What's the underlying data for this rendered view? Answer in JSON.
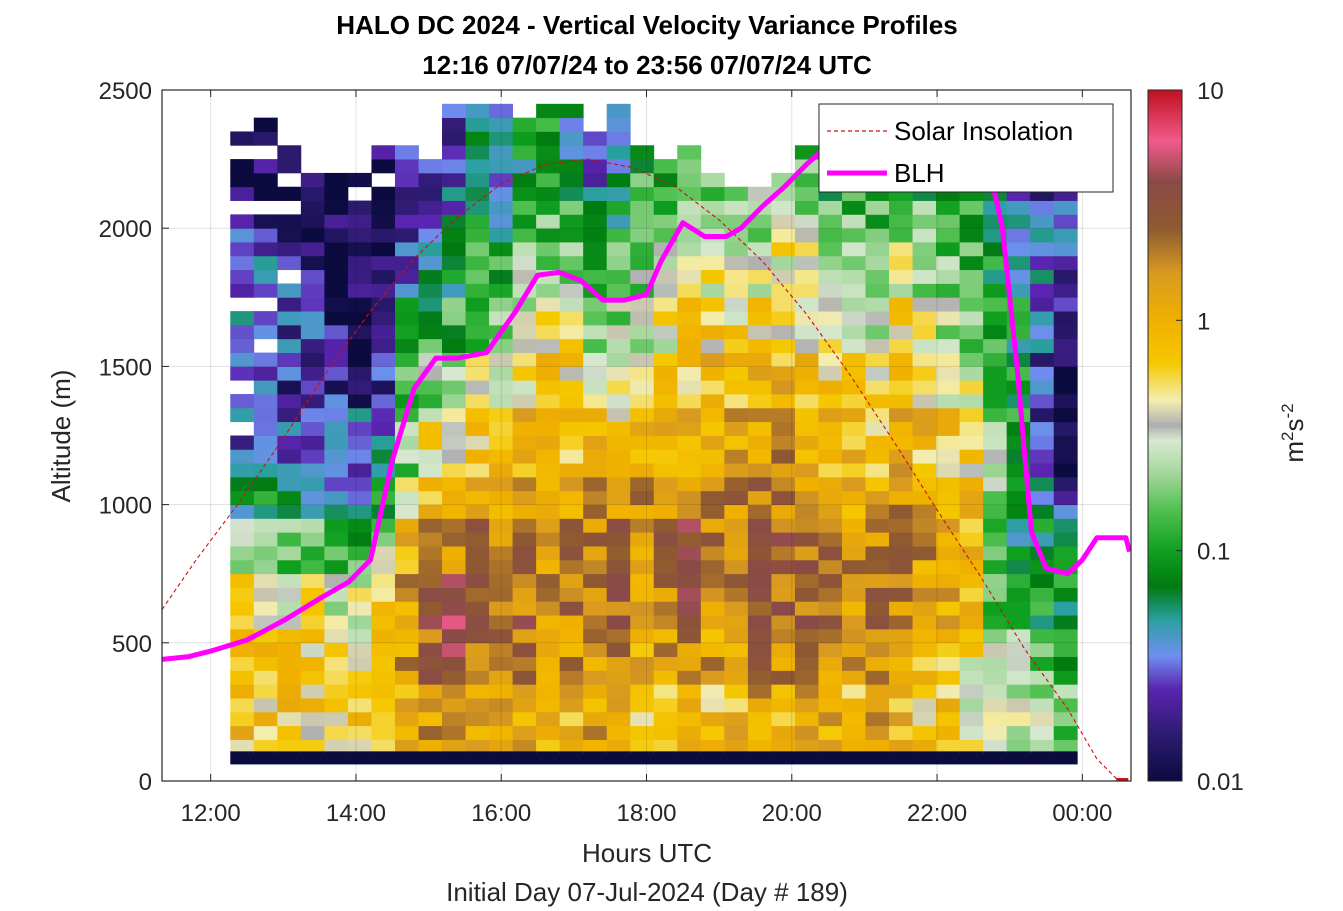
{
  "chart_data": {
    "type": "heatmap",
    "title": "HALO DC 2024 - Vertical Velocity Variance Profiles",
    "subtitle": "12:16 07/07/24 to 23:56 07/07/24  UTC",
    "xlabel": "Hours UTC",
    "xlabel2": "Initial Day 07-Jul-2024 (Day # 189)",
    "ylabel": "Altitude (m)",
    "x_unit": "hours UTC",
    "xlim": [
      11.33,
      24.67
    ],
    "ylim": [
      0,
      2500
    ],
    "x_ticks": [
      {
        "value": 12,
        "label": "12:00"
      },
      {
        "value": 14,
        "label": "14:00"
      },
      {
        "value": 16,
        "label": "16:00"
      },
      {
        "value": 18,
        "label": "18:00"
      },
      {
        "value": 20,
        "label": "20:00"
      },
      {
        "value": 22,
        "label": "22:00"
      },
      {
        "value": 24,
        "label": "00:00"
      }
    ],
    "y_ticks": [
      {
        "value": 0,
        "label": "0"
      },
      {
        "value": 500,
        "label": "500"
      },
      {
        "value": 1000,
        "label": "1000"
      },
      {
        "value": 1500,
        "label": "1500"
      },
      {
        "value": 2000,
        "label": "2000"
      },
      {
        "value": 2500,
        "label": "2500"
      }
    ],
    "grid": true,
    "legend_position": "top-right",
    "colorbar": {
      "label_base": "m",
      "label_sup1": "2",
      "label_mid": "s",
      "label_sup2": "-2",
      "scale": "log",
      "range": [
        0.01,
        10
      ],
      "ticks": [
        {
          "value": 0.01,
          "label": "0.01"
        },
        {
          "value": 0.1,
          "label": "0.1"
        },
        {
          "value": 1,
          "label": "1"
        },
        {
          "value": 10,
          "label": "10"
        }
      ],
      "stops": [
        {
          "value": 0.01,
          "color": "#0b0b40"
        },
        {
          "value": 0.016,
          "color": "#2e1b72"
        },
        {
          "value": 0.025,
          "color": "#5a24b0"
        },
        {
          "value": 0.035,
          "color": "#6f8ff0"
        },
        {
          "value": 0.05,
          "color": "#2aa0a0"
        },
        {
          "value": 0.07,
          "color": "#007a10"
        },
        {
          "value": 0.1,
          "color": "#10a020"
        },
        {
          "value": 0.15,
          "color": "#50c050"
        },
        {
          "value": 0.22,
          "color": "#a8d8a0"
        },
        {
          "value": 0.3,
          "color": "#d8e8d0"
        },
        {
          "value": 0.35,
          "color": "#b0b0b0"
        },
        {
          "value": 0.45,
          "color": "#f4eeb0"
        },
        {
          "value": 0.65,
          "color": "#f5c800"
        },
        {
          "value": 1,
          "color": "#f0b000"
        },
        {
          "value": 1.6,
          "color": "#d89a20"
        },
        {
          "value": 2.5,
          "color": "#8f5a30"
        },
        {
          "value": 4,
          "color": "#8a4a48"
        },
        {
          "value": 6,
          "color": "#f25a8a"
        },
        {
          "value": 10,
          "color": "#c01020"
        }
      ]
    },
    "series": [
      {
        "name": "Solar Insolation",
        "kind": "line",
        "color": "#cc1111",
        "style": "dashed",
        "x": [
          11.33,
          11.8,
          12.4,
          13.0,
          13.6,
          14.2,
          14.8,
          15.4,
          16.0,
          16.6,
          17.2,
          17.8,
          18.4,
          19.0,
          19.6,
          20.2,
          20.8,
          21.4,
          22.0,
          22.6,
          23.2,
          23.8,
          24.2,
          24.5
        ],
        "y": [
          620,
          800,
          1010,
          1240,
          1480,
          1700,
          1890,
          2040,
          2160,
          2230,
          2250,
          2220,
          2150,
          2030,
          1880,
          1690,
          1470,
          1230,
          980,
          740,
          480,
          260,
          80,
          0
        ]
      },
      {
        "name": "BLH",
        "kind": "line",
        "color": "#ff00ff",
        "style": "solid",
        "x": [
          11.33,
          11.7,
          12.0,
          12.5,
          13.0,
          13.5,
          13.9,
          14.2,
          14.5,
          14.8,
          15.1,
          15.4,
          15.8,
          16.2,
          16.5,
          16.8,
          17.1,
          17.4,
          17.7,
          18.0,
          18.2,
          18.5,
          18.8,
          19.1,
          19.3,
          19.6,
          19.9,
          20.2,
          20.5,
          22.6,
          22.8,
          22.9,
          23.1,
          23.3,
          23.5,
          23.8,
          24.0,
          24.2,
          24.6,
          24.65
        ],
        "y": [
          440,
          450,
          470,
          510,
          580,
          660,
          720,
          800,
          1160,
          1420,
          1530,
          1530,
          1550,
          1700,
          1830,
          1840,
          1810,
          1740,
          1740,
          1760,
          1880,
          2020,
          1970,
          1970,
          2000,
          2080,
          2150,
          2230,
          2300,
          2250,
          2120,
          2000,
          1500,
          900,
          770,
          750,
          800,
          880,
          880,
          830
        ]
      }
    ],
    "heatmap": {
      "x_start": 12.27,
      "x_end": 23.93,
      "n_cols": 36,
      "y_start": 100,
      "y_end": 2500,
      "n_rows": 48,
      "cell_height_m": 50,
      "column_bottom_gate_value": 0.01,
      "value_scale": "log10 of m2s-2",
      "columns": [
        {
          "hour": 12.43,
          "tops": [
            2360,
            2250,
            2060,
            1700,
            1560,
            1400,
            1260
          ],
          "log10": [
            -2.0,
            -1.75,
            -1.55,
            -1.35,
            -1.55,
            -1.7,
            -1.4,
            -0.9,
            -0.35,
            -0.2,
            -0.1,
            -0.1
          ]
        },
        {
          "hour": 12.76,
          "tops": [
            2440,
            2250,
            2050,
            1700,
            1560
          ],
          "log10": [
            -2.0,
            -1.8,
            -1.6,
            -1.4,
            -1.55,
            -1.65,
            -1.35,
            -0.9,
            -0.4,
            -0.2,
            -0.2,
            -0.15
          ]
        },
        {
          "hour": 13.08,
          "tops": [
            2320,
            2130,
            2030,
            1800
          ],
          "log10": [
            -2.0,
            -1.85,
            -1.7,
            -1.55,
            -1.6,
            -1.7,
            -1.4,
            -1.0,
            -0.45,
            -0.25,
            -0.2,
            -0.15
          ]
        },
        {
          "hour": 13.41,
          "tops": [
            2270,
            2180
          ],
          "log10": [
            -2.0,
            -1.95,
            -1.85,
            -1.7,
            -1.6,
            -1.75,
            -1.45,
            -1.1,
            -0.55,
            -0.3,
            -0.2,
            -0.2
          ]
        },
        {
          "hour": 13.73,
          "tops": [
            2270,
            2200
          ],
          "log10": [
            -2.0,
            -1.95,
            -1.9,
            -1.8,
            -1.7,
            -1.65,
            -1.5,
            -1.15,
            -0.6,
            -0.35,
            -0.25,
            -0.2
          ]
        },
        {
          "hour": 14.05,
          "tops": [
            2280,
            2180,
            2100
          ],
          "log10": [
            -2.0,
            -2.0,
            -1.95,
            -1.85,
            -1.8,
            -1.65,
            -1.45,
            -1.2,
            -0.65,
            -0.4,
            -0.3,
            -0.2
          ]
        },
        {
          "hour": 14.38,
          "tops": [
            2320,
            2150
          ],
          "log10": [
            -1.8,
            -1.9,
            -1.95,
            -1.85,
            -1.75,
            -1.6,
            -1.3,
            -0.9,
            -0.4,
            -0.2,
            -0.25,
            -0.2
          ]
        },
        {
          "hour": 14.7,
          "tops": [
            2300
          ],
          "log10": [
            -1.6,
            -1.7,
            -1.6,
            -1.3,
            -1.0,
            -0.9,
            -0.5,
            -0.2,
            0.1,
            0.2,
            0.1,
            -0.1
          ]
        },
        {
          "hour": 15.03,
          "tops": [
            2280
          ],
          "log10": [
            -1.5,
            -1.6,
            -1.3,
            -1.1,
            -0.9,
            -0.5,
            -0.2,
            0.0,
            0.3,
            0.5,
            0.3,
            0.0
          ]
        },
        {
          "hour": 15.35,
          "tops": [
            2470
          ],
          "log10": [
            -1.6,
            -1.5,
            -1.2,
            -1.0,
            -0.8,
            -0.4,
            -0.1,
            0.1,
            0.4,
            0.6,
            0.3,
            0.0
          ]
        },
        {
          "hour": 15.68,
          "tops": [
            2480
          ],
          "log10": [
            -1.3,
            -1.2,
            -1.0,
            -0.9,
            -0.6,
            -0.3,
            -0.1,
            0.2,
            0.3,
            0.4,
            0.2,
            -0.1
          ]
        },
        {
          "hour": 16.0,
          "tops": [
            2460
          ],
          "log10": [
            -1.5,
            -1.3,
            -1.1,
            -0.8,
            -0.5,
            -0.3,
            0.0,
            0.2,
            0.3,
            0.3,
            0.2,
            0.0
          ]
        },
        {
          "hour": 16.32,
          "tops": [
            2420
          ],
          "log10": [
            -1.2,
            -1.0,
            -0.8,
            -0.6,
            -0.4,
            -0.2,
            0.1,
            0.2,
            0.4,
            0.3,
            0.2,
            -0.1
          ]
        },
        {
          "hour": 16.65,
          "tops": [
            2470
          ],
          "log10": [
            -1.0,
            -0.9,
            -0.7,
            -0.6,
            -0.3,
            -0.1,
            0.1,
            0.2,
            0.2,
            0.2,
            0.0,
            -0.2
          ]
        },
        {
          "hour": 16.97,
          "tops": [
            2460
          ],
          "log10": [
            -1.3,
            -1.1,
            -0.9,
            -0.5,
            -0.3,
            -0.2,
            0.0,
            0.3,
            0.3,
            0.2,
            0.1,
            -0.1
          ]
        },
        {
          "hour": 17.3,
          "tops": [
            2390
          ],
          "log10": [
            -1.6,
            -1.4,
            -1.1,
            -0.8,
            -0.4,
            -0.2,
            0.1,
            0.2,
            0.4,
            0.3,
            0.1,
            0.0
          ]
        },
        {
          "hour": 17.62,
          "tops": [
            2450
          ],
          "log10": [
            -1.3,
            -1.2,
            -1.0,
            -0.8,
            -0.5,
            -0.3,
            0.0,
            0.3,
            0.4,
            0.3,
            0.1,
            -0.1
          ]
        },
        {
          "hour": 17.95,
          "tops": [
            2320
          ],
          "log10": [
            -1.0,
            -0.9,
            -0.8,
            -0.6,
            -0.4,
            -0.1,
            0.1,
            0.2,
            0.2,
            0.1,
            0.0,
            -0.2
          ]
        },
        {
          "hour": 18.27,
          "tops": [
            2270
          ],
          "log10": [
            -0.9,
            -0.8,
            -0.7,
            -0.5,
            -0.3,
            -0.1,
            0.1,
            0.3,
            0.3,
            0.2,
            0.0,
            -0.1
          ]
        },
        {
          "hour": 18.59,
          "tops": [
            2310
          ],
          "log10": [
            -0.9,
            -0.7,
            -0.5,
            -0.3,
            -0.2,
            0.0,
            0.2,
            0.4,
            0.5,
            0.4,
            0.2,
            0.0
          ]
        },
        {
          "hour": 18.92,
          "tops": [
            2220
          ],
          "log10": [
            -1.0,
            -0.8,
            -0.5,
            -0.3,
            -0.1,
            0.0,
            0.1,
            0.3,
            0.3,
            0.2,
            0.0,
            -0.2
          ]
        },
        {
          "hour": 19.24,
          "tops": [
            2190
          ],
          "log10": [
            -1.0,
            -0.8,
            -0.6,
            -0.4,
            -0.2,
            0.0,
            0.2,
            0.3,
            0.3,
            0.2,
            0.0,
            -0.1
          ]
        },
        {
          "hour": 19.57,
          "tops": [
            2150
          ],
          "log10": [
            -0.8,
            -0.7,
            -0.5,
            -0.3,
            -0.1,
            0.0,
            0.2,
            0.4,
            0.5,
            0.4,
            0.2,
            0.0
          ]
        },
        {
          "hour": 19.89,
          "tops": [
            2220
          ],
          "log10": [
            -0.8,
            -0.6,
            -0.5,
            -0.3,
            -0.1,
            0.1,
            0.3,
            0.3,
            0.4,
            0.3,
            0.1,
            -0.1
          ]
        },
        {
          "hour": 20.22,
          "tops": [
            2330
          ],
          "log10": [
            -1.0,
            -0.8,
            -0.6,
            -0.4,
            -0.2,
            0.0,
            0.2,
            0.3,
            0.4,
            0.4,
            0.1,
            0.0
          ]
        },
        {
          "hour": 20.54,
          "tops": [
            2350
          ],
          "log10": [
            -1.1,
            -0.9,
            -0.7,
            -0.5,
            -0.3,
            -0.1,
            0.1,
            0.2,
            0.3,
            0.3,
            0.1,
            -0.1
          ]
        },
        {
          "hour": 20.86,
          "tops": [
            2340
          ],
          "log10": [
            -1.0,
            -0.9,
            -0.8,
            -0.6,
            -0.4,
            -0.2,
            0.0,
            0.1,
            0.2,
            0.2,
            0.0,
            -0.1
          ]
        },
        {
          "hour": 21.19,
          "tops": [
            2330
          ],
          "log10": [
            -1.1,
            -1.0,
            -0.8,
            -0.6,
            -0.4,
            -0.2,
            0.0,
            0.2,
            0.3,
            0.3,
            0.1,
            0.0
          ]
        },
        {
          "hour": 21.51,
          "tops": [
            2330
          ],
          "log10": [
            -1.0,
            -0.8,
            -0.6,
            -0.4,
            -0.2,
            0.0,
            0.1,
            0.3,
            0.3,
            0.2,
            0.0,
            -0.1
          ]
        },
        {
          "hour": 21.84,
          "tops": [
            2380
          ],
          "log10": [
            -1.0,
            -0.9,
            -0.7,
            -0.5,
            -0.3,
            -0.2,
            0.0,
            0.1,
            0.2,
            0.1,
            -0.1,
            -0.2
          ]
        },
        {
          "hour": 22.16,
          "tops": [
            2390
          ],
          "log10": [
            -1.1,
            -1.0,
            -0.9,
            -0.7,
            -0.5,
            -0.3,
            -0.1,
            0.0,
            0.1,
            0.0,
            -0.1,
            -0.2
          ]
        },
        {
          "hour": 22.49,
          "tops": [
            2350
          ],
          "log10": [
            -1.1,
            -1.0,
            -0.9,
            -0.8,
            -0.6,
            -0.4,
            -0.2,
            -0.1,
            0.0,
            -0.3,
            -0.4,
            -0.5
          ]
        },
        {
          "hour": 22.81,
          "tops": [
            2440
          ],
          "log10": [
            -1.3,
            -1.2,
            -1.1,
            -1.0,
            -0.9,
            -0.8,
            -0.6,
            -0.7,
            -0.9,
            -0.6,
            -0.4,
            -0.5
          ]
        },
        {
          "hour": 23.14,
          "tops": [
            2240
          ],
          "log10": [
            -1.5,
            -1.4,
            -1.3,
            -1.2,
            -1.1,
            -1.0,
            -0.9,
            -1.1,
            -1.3,
            -0.9,
            -0.6,
            -0.5
          ]
        },
        {
          "hour": 23.46,
          "tops": [
            2260
          ],
          "log10": [
            -1.7,
            -1.6,
            -1.5,
            -1.5,
            -1.6,
            -1.7,
            -1.5,
            -1.2,
            -1.1,
            -0.9,
            -0.6,
            -0.5
          ]
        },
        {
          "hour": 23.78,
          "tops": [
            2270
          ],
          "log10": [
            -1.6,
            -1.5,
            -1.6,
            -1.7,
            -1.9,
            -2.0,
            -2.0,
            -1.2,
            -1.1,
            -1.0,
            -0.8,
            -0.6
          ]
        }
      ]
    },
    "colorbar_mark": {
      "value": 0.35,
      "color": "#b0b0b0"
    },
    "end_marker": {
      "x": 24.55,
      "y": 0,
      "color": "#cc1111"
    }
  }
}
